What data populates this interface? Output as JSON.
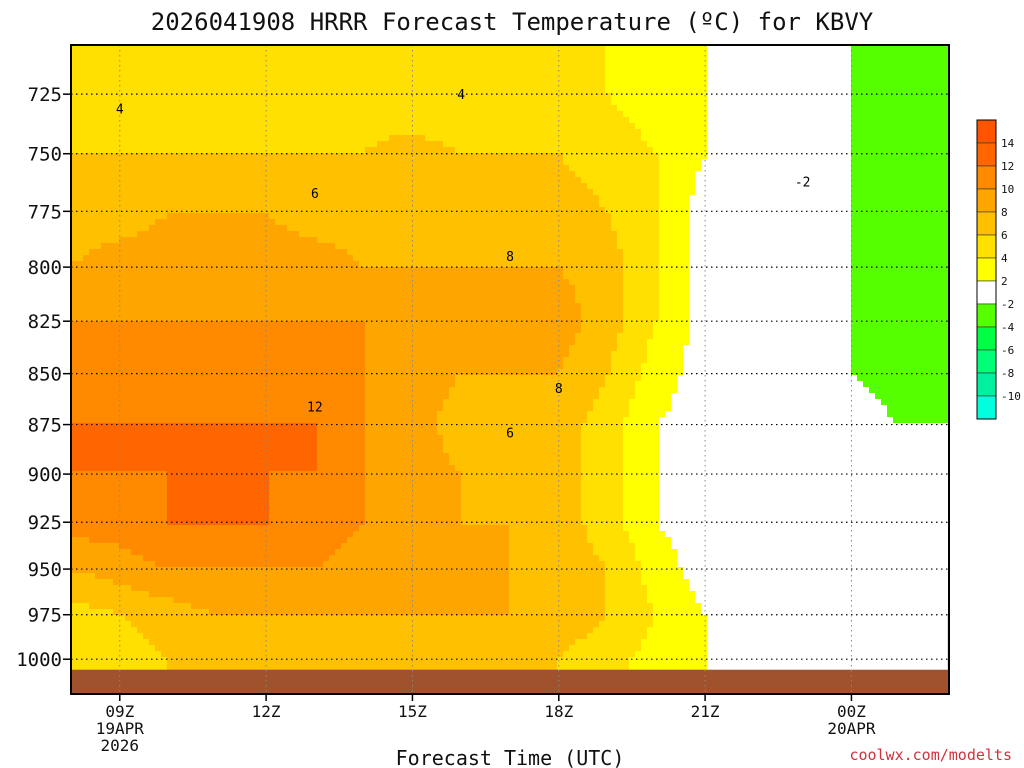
{
  "chart_data": {
    "type": "filled-contour",
    "title": "2026041908 HRRR Forecast Temperature (ºC) for KBVY",
    "xlabel": "Forecast Time (UTC)",
    "ylabel": "",
    "credit": "coolwx.com/modelts",
    "x_hours": [
      8,
      9,
      10,
      11,
      12,
      13,
      14,
      15,
      16,
      17,
      18,
      19,
      20,
      21,
      22,
      23,
      24,
      25,
      26
    ],
    "xlim": [
      8,
      26
    ],
    "x_ticks": [
      {
        "hour": 9,
        "label": "09Z",
        "sub1": "19APR",
        "sub2": "2026"
      },
      {
        "hour": 12,
        "label": "12Z"
      },
      {
        "hour": 15,
        "label": "15Z"
      },
      {
        "hour": 18,
        "label": "18Z"
      },
      {
        "hour": 21,
        "label": "21Z"
      },
      {
        "hour": 24,
        "label": "00Z",
        "sub1": "20APR"
      }
    ],
    "ylim": [
      1020,
      705
    ],
    "y_log_pressure": true,
    "y_ticks": [
      725,
      750,
      775,
      800,
      825,
      850,
      875,
      900,
      925,
      950,
      975,
      1000
    ],
    "grid": true,
    "ground_band_hpa": [
      1020,
      1006
    ],
    "contour_levels": [
      -10,
      -8,
      -6,
      -4,
      -2,
      2,
      4,
      6,
      8,
      10,
      12,
      14
    ],
    "colorbar_labels": [
      "14",
      "12",
      "10",
      "8",
      "6",
      "4",
      "2",
      "-2",
      "-4",
      "-6",
      "-8",
      "-10"
    ],
    "colors": {
      "lt_m10": "#00ffdd",
      "m10_m8": "#00f0a0",
      "m8_m6": "#00ff77",
      "m6_m4": "#00ff44",
      "m4_m2": "#55ff00",
      "m2_2": "#ffffff",
      "2_4": "#ffff00",
      "4_6": "#ffe000",
      "6_8": "#ffc000",
      "8_10": "#ffa500",
      "10_12": "#ff8a00",
      "12_14": "#ff6600",
      "gt_14": "#ff5500",
      "ground": "#a0522d",
      "zero_contour": "#c0005a"
    },
    "pressure_hpa": [
      1000,
      975,
      950,
      925,
      900,
      875,
      850,
      825,
      800,
      775,
      750,
      725
    ],
    "temperature_c": [
      [
        5,
        5,
        6,
        7,
        7,
        7,
        7,
        7,
        7,
        7,
        6,
        5,
        3,
        2,
        1,
        1,
        1,
        1,
        2
      ],
      [
        5,
        6,
        7,
        8,
        8,
        8,
        8,
        8,
        8,
        8,
        7,
        6,
        4,
        2,
        1,
        0,
        0,
        1,
        2
      ],
      [
        8,
        9,
        10,
        10,
        10,
        10,
        9,
        9,
        8,
        8,
        7,
        6,
        3,
        1,
        0,
        0,
        0,
        1,
        1
      ],
      [
        11,
        11,
        12,
        12,
        12,
        11,
        10,
        9,
        8,
        8,
        7,
        5,
        2,
        1,
        0,
        0,
        0,
        0,
        0
      ],
      [
        12,
        12,
        12,
        13,
        12,
        12,
        10,
        9,
        8,
        7,
        7,
        5,
        2,
        1,
        0,
        -1,
        -1,
        -1,
        -2
      ],
      [
        12,
        12,
        12,
        12,
        12,
        12,
        10,
        9,
        7,
        6,
        7,
        5,
        2,
        1,
        0,
        -1,
        -1,
        -2,
        -2
      ],
      [
        11,
        11,
        11,
        11,
        11,
        11,
        10,
        9,
        8,
        8,
        8,
        6,
        3,
        1,
        0,
        -1,
        -2,
        -3,
        -3
      ],
      [
        10,
        10,
        10,
        10,
        10,
        10,
        10,
        10,
        9,
        10,
        9,
        7,
        4,
        1,
        0,
        -1,
        -2,
        -3,
        -3
      ],
      [
        8,
        9,
        9,
        9,
        9,
        9,
        8,
        8,
        8,
        8,
        8,
        7,
        4,
        1,
        0,
        -2,
        -2,
        -3,
        -3
      ],
      [
        7,
        7,
        8,
        8,
        8,
        7,
        7,
        7,
        7,
        7,
        7,
        6,
        4,
        1,
        -2,
        -2,
        -2,
        -3,
        -4
      ],
      [
        6,
        6,
        6,
        6,
        6,
        6,
        6,
        7,
        6,
        6,
        6,
        5,
        4,
        2,
        -1,
        -2,
        -2,
        -3,
        -4
      ],
      [
        4,
        4,
        4,
        5,
        5,
        5,
        5,
        4,
        4,
        4,
        4,
        4,
        3,
        2,
        1,
        -2,
        -2,
        -3,
        -4
      ]
    ],
    "contour_labels": [
      {
        "hour": 9,
        "hpa": 731,
        "text": "4"
      },
      {
        "hour": 16,
        "hpa": 725,
        "text": "4"
      },
      {
        "hour": 13,
        "hpa": 767,
        "text": "6"
      },
      {
        "hour": 17,
        "hpa": 795,
        "text": "8"
      },
      {
        "hour": 13,
        "hpa": 866,
        "text": "12"
      },
      {
        "hour": 18,
        "hpa": 857,
        "text": "8"
      },
      {
        "hour": 17,
        "hpa": 879,
        "text": "6"
      },
      {
        "hour": 23,
        "hpa": 762,
        "text": "-2"
      }
    ]
  }
}
